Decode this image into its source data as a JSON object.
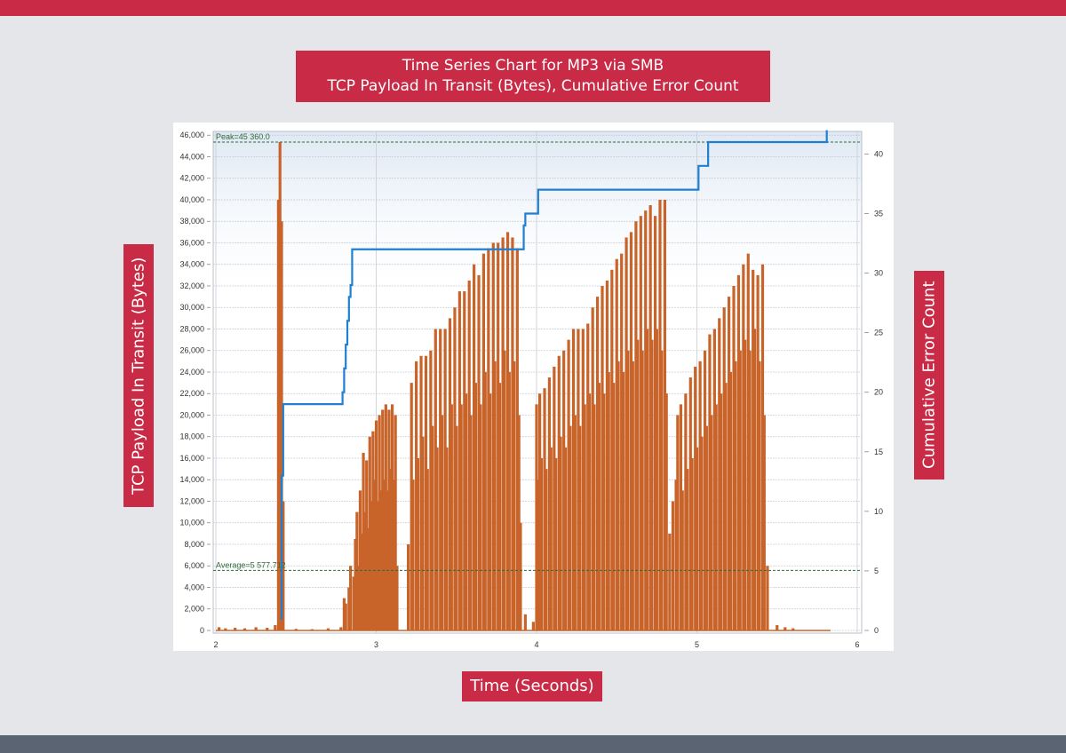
{
  "title": {
    "line1": "Time Series Chart for MP3 via SMB",
    "line2": "TCP Payload In Transit (Bytes), Cumulative Error Count"
  },
  "colors": {
    "accent": "#c92a45",
    "payload_series": "#c8642a",
    "error_series": "#1f7fd0",
    "footer": "#5a6473"
  },
  "chart_data": {
    "type": "line",
    "title": "Time Series Chart for MP3 via SMB\nTCP Payload In Transit (Bytes), Cumulative Error Count",
    "xlabel": "Time (Seconds)",
    "ylabel": "TCP Payload In Transit (Bytes)",
    "y2label": "Cumulative Error Count",
    "xlim": [
      2,
      6.08
    ],
    "ylim": [
      0,
      47000
    ],
    "y2lim": [
      0,
      43
    ],
    "x_ticks": [
      2,
      3,
      4,
      5,
      6
    ],
    "y_ticks": [
      0,
      2000,
      4000,
      6000,
      8000,
      10000,
      12000,
      14000,
      16000,
      18000,
      20000,
      22000,
      24000,
      26000,
      28000,
      30000,
      32000,
      34000,
      36000,
      38000,
      40000,
      42000,
      44000,
      46000
    ],
    "y_tick_labels": [
      "0",
      "2,000",
      "4,000",
      "6,000",
      "8,000",
      "10,000",
      "12,000",
      "14,000",
      "16,000",
      "18,000",
      "20,000",
      "22,000",
      "24,000",
      "26,000",
      "28,000",
      "30,000",
      "32,000",
      "34,000",
      "36,000",
      "38,000",
      "40,000",
      "42,000",
      "44,000",
      "46,000"
    ],
    "y2_ticks": [
      0,
      5,
      10,
      15,
      20,
      25,
      30,
      35,
      40
    ],
    "grid": true,
    "reference_lines": [
      {
        "label": "Peak=45 360.0",
        "value": 45360
      },
      {
        "label": "Average=5 577.712",
        "value": 5578
      }
    ],
    "series": [
      {
        "name": "TCP Payload In Transit (Bytes)",
        "axis": "left",
        "style": "spikes",
        "points": [
          [
            2.02,
            300
          ],
          [
            2.06,
            200
          ],
          [
            2.12,
            250
          ],
          [
            2.18,
            200
          ],
          [
            2.25,
            300
          ],
          [
            2.32,
            250
          ],
          [
            2.37,
            500
          ],
          [
            2.39,
            40000
          ],
          [
            2.4,
            45360
          ],
          [
            2.41,
            38000
          ],
          [
            2.42,
            12000
          ],
          [
            2.5,
            150
          ],
          [
            2.6,
            120
          ],
          [
            2.7,
            200
          ],
          [
            2.78,
            300
          ],
          [
            2.8,
            3000
          ],
          [
            2.81,
            2500
          ],
          [
            2.83,
            4000
          ],
          [
            2.84,
            6000
          ],
          [
            2.86,
            5000
          ],
          [
            2.87,
            8500
          ],
          [
            2.88,
            11000
          ],
          [
            2.89,
            6000
          ],
          [
            2.9,
            13000
          ],
          [
            2.91,
            9000
          ],
          [
            2.92,
            16500
          ],
          [
            2.93,
            11000
          ],
          [
            2.94,
            15800
          ],
          [
            2.95,
            9500
          ],
          [
            2.96,
            18000
          ],
          [
            2.97,
            12000
          ],
          [
            2.98,
            18500
          ],
          [
            2.99,
            14000
          ],
          [
            3.0,
            19500
          ],
          [
            3.01,
            12000
          ],
          [
            3.02,
            20000
          ],
          [
            3.03,
            13000
          ],
          [
            3.04,
            20500
          ],
          [
            3.05,
            14000
          ],
          [
            3.06,
            21000
          ],
          [
            3.07,
            13000
          ],
          [
            3.08,
            20500
          ],
          [
            3.09,
            15000
          ],
          [
            3.1,
            21000
          ],
          [
            3.11,
            14000
          ],
          [
            3.12,
            20000
          ],
          [
            3.13,
            6000
          ],
          [
            3.2,
            8000
          ],
          [
            3.22,
            23000
          ],
          [
            3.23,
            14000
          ],
          [
            3.25,
            25000
          ],
          [
            3.26,
            16000
          ],
          [
            3.28,
            25500
          ],
          [
            3.29,
            18000
          ],
          [
            3.31,
            25500
          ],
          [
            3.32,
            15000
          ],
          [
            3.34,
            26000
          ],
          [
            3.35,
            19000
          ],
          [
            3.37,
            28000
          ],
          [
            3.38,
            17000
          ],
          [
            3.4,
            28000
          ],
          [
            3.41,
            20000
          ],
          [
            3.43,
            28000
          ],
          [
            3.44,
            17000
          ],
          [
            3.46,
            29000
          ],
          [
            3.47,
            21000
          ],
          [
            3.49,
            30000
          ],
          [
            3.5,
            19000
          ],
          [
            3.52,
            31500
          ],
          [
            3.53,
            21000
          ],
          [
            3.55,
            31500
          ],
          [
            3.56,
            22000
          ],
          [
            3.58,
            32500
          ],
          [
            3.59,
            20000
          ],
          [
            3.61,
            34000
          ],
          [
            3.62,
            23000
          ],
          [
            3.64,
            33000
          ],
          [
            3.65,
            21000
          ],
          [
            3.67,
            35000
          ],
          [
            3.68,
            24000
          ],
          [
            3.7,
            35500
          ],
          [
            3.71,
            22000
          ],
          [
            3.73,
            36000
          ],
          [
            3.74,
            25000
          ],
          [
            3.76,
            36000
          ],
          [
            3.77,
            23000
          ],
          [
            3.79,
            36500
          ],
          [
            3.8,
            26000
          ],
          [
            3.82,
            37000
          ],
          [
            3.83,
            24000
          ],
          [
            3.85,
            36500
          ],
          [
            3.86,
            25000
          ],
          [
            3.88,
            35500
          ],
          [
            3.89,
            20000
          ],
          [
            3.9,
            10000
          ],
          [
            3.93,
            1500
          ],
          [
            3.98,
            800
          ],
          [
            4.0,
            21000
          ],
          [
            4.01,
            14000
          ],
          [
            4.02,
            22000
          ],
          [
            4.03,
            16000
          ],
          [
            4.05,
            22500
          ],
          [
            4.06,
            15000
          ],
          [
            4.08,
            23500
          ],
          [
            4.09,
            17000
          ],
          [
            4.11,
            24500
          ],
          [
            4.12,
            16000
          ],
          [
            4.14,
            25500
          ],
          [
            4.15,
            18000
          ],
          [
            4.17,
            26000
          ],
          [
            4.18,
            17000
          ],
          [
            4.2,
            27000
          ],
          [
            4.21,
            19000
          ],
          [
            4.23,
            28000
          ],
          [
            4.24,
            20000
          ],
          [
            4.26,
            28000
          ],
          [
            4.27,
            19000
          ],
          [
            4.29,
            28000
          ],
          [
            4.3,
            21000
          ],
          [
            4.32,
            28500
          ],
          [
            4.33,
            22000
          ],
          [
            4.35,
            30000
          ],
          [
            4.36,
            21000
          ],
          [
            4.38,
            31000
          ],
          [
            4.39,
            23000
          ],
          [
            4.41,
            32000
          ],
          [
            4.42,
            22000
          ],
          [
            4.44,
            32500
          ],
          [
            4.45,
            24000
          ],
          [
            4.47,
            33500
          ],
          [
            4.48,
            23000
          ],
          [
            4.5,
            34500
          ],
          [
            4.51,
            25000
          ],
          [
            4.53,
            35000
          ],
          [
            4.54,
            24000
          ],
          [
            4.56,
            36500
          ],
          [
            4.57,
            26000
          ],
          [
            4.59,
            37000
          ],
          [
            4.6,
            25000
          ],
          [
            4.62,
            38000
          ],
          [
            4.63,
            27000
          ],
          [
            4.65,
            38500
          ],
          [
            4.66,
            26000
          ],
          [
            4.68,
            39000
          ],
          [
            4.69,
            28000
          ],
          [
            4.71,
            39500
          ],
          [
            4.72,
            27000
          ],
          [
            4.74,
            38500
          ],
          [
            4.75,
            28000
          ],
          [
            4.77,
            40000
          ],
          [
            4.78,
            26000
          ],
          [
            4.8,
            40000
          ],
          [
            4.81,
            22000
          ],
          [
            4.83,
            9000
          ],
          [
            4.85,
            12000
          ],
          [
            4.87,
            14000
          ],
          [
            4.88,
            20000
          ],
          [
            4.9,
            21000
          ],
          [
            4.91,
            13000
          ],
          [
            4.93,
            22000
          ],
          [
            4.94,
            15000
          ],
          [
            4.96,
            23500
          ],
          [
            4.97,
            16000
          ],
          [
            4.99,
            24500
          ],
          [
            5.0,
            17000
          ],
          [
            5.02,
            25000
          ],
          [
            5.03,
            18000
          ],
          [
            5.05,
            26000
          ],
          [
            5.06,
            19000
          ],
          [
            5.08,
            27500
          ],
          [
            5.09,
            20000
          ],
          [
            5.11,
            28000
          ],
          [
            5.12,
            21000
          ],
          [
            5.14,
            29000
          ],
          [
            5.15,
            22000
          ],
          [
            5.17,
            30000
          ],
          [
            5.18,
            23000
          ],
          [
            5.2,
            31000
          ],
          [
            5.21,
            24000
          ],
          [
            5.23,
            32000
          ],
          [
            5.24,
            25000
          ],
          [
            5.26,
            33000
          ],
          [
            5.27,
            26000
          ],
          [
            5.29,
            34000
          ],
          [
            5.3,
            27000
          ],
          [
            5.32,
            35000
          ],
          [
            5.33,
            26000
          ],
          [
            5.35,
            33500
          ],
          [
            5.36,
            28000
          ],
          [
            5.38,
            33000
          ],
          [
            5.39,
            25000
          ],
          [
            5.41,
            34000
          ],
          [
            5.42,
            20000
          ],
          [
            5.44,
            6000
          ],
          [
            5.5,
            500
          ],
          [
            5.55,
            300
          ],
          [
            5.6,
            200
          ]
        ]
      },
      {
        "name": "Cumulative Error Count",
        "axis": "right",
        "style": "step",
        "points": [
          [
            2.4,
            1
          ],
          [
            2.41,
            13
          ],
          [
            2.42,
            19
          ],
          [
            2.78,
            19
          ],
          [
            2.79,
            20
          ],
          [
            2.8,
            22
          ],
          [
            2.81,
            24
          ],
          [
            2.82,
            26
          ],
          [
            2.83,
            28
          ],
          [
            2.84,
            29
          ],
          [
            2.85,
            32
          ],
          [
            3.9,
            32
          ],
          [
            3.92,
            34
          ],
          [
            3.93,
            35
          ],
          [
            4.0,
            35
          ],
          [
            4.01,
            37
          ],
          [
            5.0,
            37
          ],
          [
            5.01,
            39
          ],
          [
            5.06,
            39
          ],
          [
            5.07,
            41
          ],
          [
            5.8,
            41
          ],
          [
            5.81,
            42
          ]
        ]
      }
    ]
  }
}
